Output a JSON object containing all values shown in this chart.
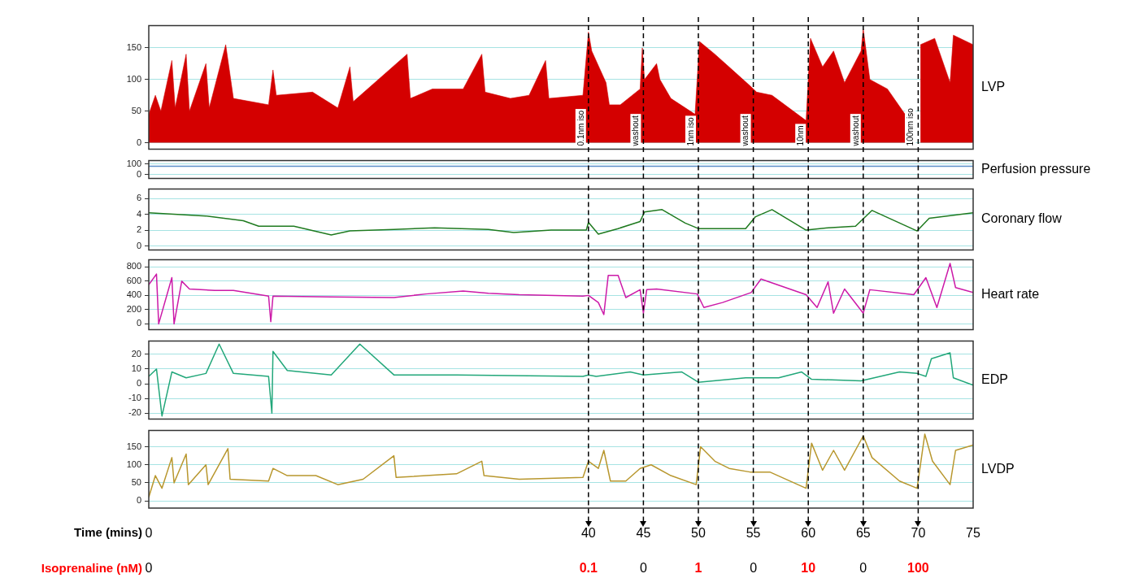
{
  "chart_data": [
    {
      "type": "area",
      "ylabel": "LVP",
      "color": "#d40000",
      "xlim": [
        0,
        75
      ],
      "xticks": [
        0,
        40,
        45,
        50,
        55,
        60,
        65,
        70,
        75
      ],
      "ylim": [
        -10,
        185
      ],
      "yticks": [
        0,
        50,
        100,
        150
      ],
      "grid": "y",
      "tick_labels": "y",
      "x": [
        0,
        0.6,
        1.1,
        2.1,
        2.4,
        3.4,
        3.7,
        5.2,
        5.5,
        7.0,
        7.7,
        10.9,
        11.3,
        11.6,
        14.9,
        17.2,
        18.3,
        18.6,
        23.5,
        23.8,
        25.8,
        28.6,
        30.3,
        30.6,
        32.9,
        34.6,
        36.1,
        36.4,
        39.5,
        40,
        40.3,
        41.6,
        41.9,
        42.9,
        44.7,
        44.9,
        45.1,
        46.2,
        46.5,
        47.5,
        49.7,
        50.1,
        51.5,
        53.1,
        54.7,
        55.3,
        56.7,
        59.8,
        60.2,
        61.3,
        62.3,
        63.3,
        64.8,
        65,
        65.6,
        67.2,
        68.8,
        69.6,
        70.2,
        71.5,
        72.9,
        73.2,
        75
      ],
      "values": [
        45,
        75,
        50,
        130,
        55,
        140,
        50,
        125,
        55,
        155,
        70,
        60,
        115,
        75,
        80,
        55,
        120,
        65,
        140,
        70,
        85,
        85,
        140,
        80,
        70,
        75,
        130,
        70,
        75,
        175,
        145,
        95,
        60,
        60,
        85,
        150,
        100,
        125,
        100,
        70,
        45,
        160,
        140,
        115,
        90,
        80,
        75,
        35,
        165,
        120,
        145,
        95,
        145,
        180,
        100,
        85,
        45,
        null,
        155,
        165,
        95,
        170,
        155
      ],
      "ref_lines": [
        {
          "axis": "x",
          "value": 40,
          "label": "0.1nm iso",
          "line_style": "dashed",
          "color": "#000000"
        },
        {
          "axis": "x",
          "value": 45,
          "label": "washout",
          "line_style": "dashed",
          "color": "#000000"
        },
        {
          "axis": "x",
          "value": 50,
          "label": "1nm iso",
          "line_style": "dashed",
          "color": "#000000"
        },
        {
          "axis": "x",
          "value": 55,
          "label": "washout",
          "line_style": "dashed",
          "color": "#000000"
        },
        {
          "axis": "x",
          "value": 60,
          "label": "10nm",
          "line_style": "dashed",
          "color": "#000000"
        },
        {
          "axis": "x",
          "value": 65,
          "label": "washout",
          "line_style": "dashed",
          "color": "#000000"
        },
        {
          "axis": "x",
          "value": 70,
          "label": "100nm iso",
          "line_style": "dashed",
          "color": "#000000"
        }
      ]
    },
    {
      "type": "line",
      "ylabel": "Perfusion pressure",
      "color": "#5b8fc9",
      "xlim": [
        0,
        75
      ],
      "xticks": [
        0,
        40,
        45,
        50,
        55,
        60,
        65,
        70,
        75
      ],
      "ylim": [
        -35,
        130
      ],
      "yticks": [
        0,
        100
      ],
      "grid": "y",
      "tick_labels": "y",
      "x": [
        0,
        75
      ],
      "values": [
        78,
        78
      ],
      "ref_lines": [
        {
          "axis": "x",
          "value": 40,
          "line_style": "dashed",
          "color": "#000000"
        },
        {
          "axis": "x",
          "value": 45,
          "line_style": "dashed",
          "color": "#000000"
        },
        {
          "axis": "x",
          "value": 50,
          "line_style": "dashed",
          "color": "#000000"
        },
        {
          "axis": "x",
          "value": 55,
          "line_style": "dashed",
          "color": "#000000"
        },
        {
          "axis": "x",
          "value": 60,
          "line_style": "dashed",
          "color": "#000000"
        },
        {
          "axis": "x",
          "value": 65,
          "line_style": "dashed",
          "color": "#000000"
        },
        {
          "axis": "x",
          "value": 70,
          "line_style": "dashed",
          "color": "#000000"
        }
      ]
    },
    {
      "type": "line",
      "ylabel": "Coronary flow",
      "color": "#1f7a1f",
      "xlim": [
        0,
        75
      ],
      "xticks": [
        0,
        40,
        45,
        50,
        55,
        60,
        65,
        70,
        75
      ],
      "ylim": [
        -0.5,
        7.2
      ],
      "yticks": [
        0,
        2,
        4,
        6
      ],
      "grid": "y",
      "tick_labels": "y",
      "x": [
        0,
        5.2,
        8.6,
        10,
        13.2,
        16.6,
        18.3,
        22.3,
        26,
        30.9,
        33.2,
        36.6,
        39.8,
        40,
        40.9,
        42.7,
        44.7,
        45.1,
        46.7,
        48.8,
        50,
        54.3,
        55.2,
        56.7,
        59.8,
        61.8,
        64.3,
        65.8,
        69.9,
        71,
        75
      ],
      "values": [
        4.2,
        3.8,
        3.2,
        2.5,
        2.5,
        1.4,
        1.9,
        2.1,
        2.3,
        2.1,
        1.7,
        2.0,
        2.0,
        3.0,
        1.5,
        2.2,
        3.1,
        4.3,
        4.6,
        2.9,
        2.2,
        2.2,
        3.7,
        4.6,
        2.0,
        2.3,
        2.5,
        4.5,
        1.9,
        3.5,
        4.2
      ],
      "ref_lines": [
        {
          "axis": "x",
          "value": 40,
          "line_style": "dashed",
          "color": "#000000"
        },
        {
          "axis": "x",
          "value": 45,
          "line_style": "dashed",
          "color": "#000000"
        },
        {
          "axis": "x",
          "value": 50,
          "line_style": "dashed",
          "color": "#000000"
        },
        {
          "axis": "x",
          "value": 55,
          "line_style": "dashed",
          "color": "#000000"
        },
        {
          "axis": "x",
          "value": 60,
          "line_style": "dashed",
          "color": "#000000"
        },
        {
          "axis": "x",
          "value": 65,
          "line_style": "dashed",
          "color": "#000000"
        },
        {
          "axis": "x",
          "value": 70,
          "line_style": "dashed",
          "color": "#000000"
        }
      ]
    },
    {
      "type": "line",
      "ylabel": "Heart rate",
      "color": "#cc1aa8",
      "xlim": [
        0,
        75
      ],
      "xticks": [
        0,
        40,
        45,
        50,
        55,
        60,
        65,
        70,
        75
      ],
      "ylim": [
        -80,
        900
      ],
      "yticks": [
        0,
        200,
        400,
        600,
        800
      ],
      "grid": "y",
      "tick_labels": "y",
      "x": [
        0,
        0.7,
        0.9,
        2.1,
        2.3,
        3,
        3.7,
        6,
        7.7,
        10.9,
        11.1,
        11.3,
        16.6,
        22.3,
        25.2,
        28.6,
        30.9,
        33.7,
        39.5,
        40,
        40.9,
        41.4,
        41.8,
        42.7,
        43.4,
        44.7,
        45,
        45.3,
        46.2,
        49.9,
        50.5,
        52.2,
        54.8,
        55.7,
        59.8,
        60.8,
        61.8,
        62.3,
        63.3,
        65,
        65.6,
        69.6,
        70.7,
        71.7,
        72.9,
        73.4,
        75
      ],
      "values": [
        550,
        700,
        0,
        650,
        0,
        600,
        490,
        470,
        470,
        390,
        30,
        390,
        380,
        370,
        420,
        460,
        430,
        410,
        390,
        400,
        300,
        130,
        680,
        680,
        370,
        480,
        150,
        480,
        490,
        420,
        230,
        300,
        440,
        630,
        410,
        230,
        590,
        150,
        490,
        150,
        480,
        410,
        650,
        230,
        850,
        510,
        440
      ],
      "ref_lines": [
        {
          "axis": "x",
          "value": 40,
          "line_style": "dashed",
          "color": "#000000"
        },
        {
          "axis": "x",
          "value": 45,
          "line_style": "dashed",
          "color": "#000000"
        },
        {
          "axis": "x",
          "value": 50,
          "line_style": "dashed",
          "color": "#000000"
        },
        {
          "axis": "x",
          "value": 55,
          "line_style": "dashed",
          "color": "#000000"
        },
        {
          "axis": "x",
          "value": 60,
          "line_style": "dashed",
          "color": "#000000"
        },
        {
          "axis": "x",
          "value": 65,
          "line_style": "dashed",
          "color": "#000000"
        },
        {
          "axis": "x",
          "value": 70,
          "line_style": "dashed",
          "color": "#000000"
        }
      ]
    },
    {
      "type": "line",
      "ylabel": "EDP",
      "color": "#22a77a",
      "xlim": [
        0,
        75
      ],
      "xticks": [
        0,
        40,
        45,
        50,
        55,
        60,
        65,
        70,
        75
      ],
      "ylim": [
        -24,
        29
      ],
      "yticks": [
        -20,
        -10,
        0,
        10,
        20
      ],
      "grid": "y",
      "tick_labels": "y",
      "x": [
        0,
        0.7,
        1.2,
        2.1,
        3.4,
        5.2,
        6.4,
        7.7,
        10.9,
        11.2,
        11.3,
        12.6,
        16.6,
        19.2,
        22.3,
        28,
        39.5,
        40,
        40.7,
        43.8,
        45,
        48.5,
        50,
        54.3,
        57.3,
        59.4,
        60.3,
        64.8,
        68.3,
        69.9,
        70.7,
        71.2,
        72.9,
        73.2,
        75
      ],
      "values": [
        5,
        10,
        -22,
        8,
        4,
        7,
        27,
        7,
        5,
        -20,
        22,
        9,
        6,
        27,
        6,
        6,
        5,
        6,
        5,
        8,
        6,
        8,
        1,
        4,
        4,
        8,
        3,
        2,
        8,
        7,
        5,
        17,
        21,
        4,
        -1
      ],
      "ref_lines": [
        {
          "axis": "x",
          "value": 40,
          "line_style": "dashed",
          "color": "#000000"
        },
        {
          "axis": "x",
          "value": 45,
          "line_style": "dashed",
          "color": "#000000"
        },
        {
          "axis": "x",
          "value": 50,
          "line_style": "dashed",
          "color": "#000000"
        },
        {
          "axis": "x",
          "value": 55,
          "line_style": "dashed",
          "color": "#000000"
        },
        {
          "axis": "x",
          "value": 60,
          "line_style": "dashed",
          "color": "#000000"
        },
        {
          "axis": "x",
          "value": 65,
          "line_style": "dashed",
          "color": "#000000"
        },
        {
          "axis": "x",
          "value": 70,
          "line_style": "dashed",
          "color": "#000000"
        }
      ]
    },
    {
      "type": "line",
      "ylabel": "LVDP",
      "color": "#b8972e",
      "xlabel": "Time (mins)",
      "xlim": [
        0,
        75
      ],
      "xticks": [
        0,
        40,
        45,
        50,
        55,
        60,
        65,
        70,
        75
      ],
      "ylim": [
        -20,
        195
      ],
      "yticks": [
        0,
        50,
        100,
        150
      ],
      "grid": "y",
      "x": [
        0,
        0.6,
        1.2,
        2.1,
        2.3,
        3.4,
        3.6,
        5.2,
        5.4,
        7.2,
        7.4,
        10.9,
        11.3,
        12.6,
        15.2,
        17.2,
        19.5,
        22.3,
        22.5,
        28,
        30.3,
        30.5,
        33.7,
        39.5,
        40,
        40.9,
        41.4,
        42,
        43.4,
        44.7,
        45.7,
        47.5,
        49.8,
        50.2,
        51.5,
        52.8,
        54.7,
        56.5,
        59.8,
        60.3,
        61.3,
        62.3,
        63.3,
        65,
        65.8,
        68.3,
        69.9,
        70.6,
        71.3,
        72.9,
        73.4,
        75
      ],
      "values": [
        10,
        70,
        35,
        120,
        50,
        130,
        45,
        100,
        45,
        145,
        60,
        55,
        90,
        70,
        70,
        45,
        60,
        125,
        65,
        75,
        110,
        70,
        60,
        65,
        110,
        90,
        140,
        55,
        55,
        90,
        100,
        70,
        45,
        150,
        110,
        90,
        80,
        80,
        35,
        160,
        85,
        140,
        85,
        180,
        120,
        55,
        35,
        185,
        110,
        45,
        140,
        155
      ],
      "ref_lines": [
        {
          "axis": "x",
          "value": 40,
          "line_style": "dashed",
          "color": "#000000"
        },
        {
          "axis": "x",
          "value": 45,
          "line_style": "dashed",
          "color": "#000000"
        },
        {
          "axis": "x",
          "value": 50,
          "line_style": "dashed",
          "color": "#000000"
        },
        {
          "axis": "x",
          "value": 55,
          "line_style": "dashed",
          "color": "#000000"
        },
        {
          "axis": "x",
          "value": 60,
          "line_style": "dashed",
          "color": "#000000"
        },
        {
          "axis": "x",
          "value": 65,
          "line_style": "dashed",
          "color": "#000000"
        },
        {
          "axis": "x",
          "value": 70,
          "line_style": "dashed",
          "color": "#000000"
        }
      ],
      "annotations": [
        "Isoprenaline (nM)",
        "0",
        "0.1",
        "0",
        "1",
        "0",
        "10",
        "0",
        "100"
      ]
    }
  ]
}
